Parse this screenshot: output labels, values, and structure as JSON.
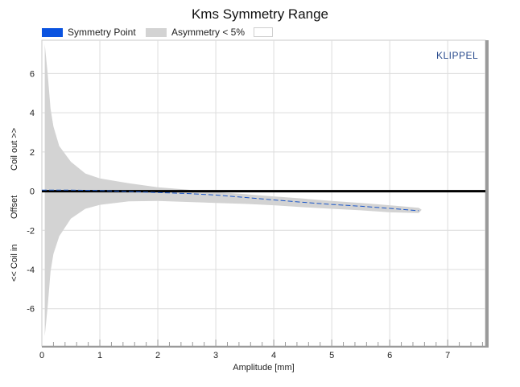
{
  "chart_data": {
    "type": "area",
    "title": "Kms Symmetry Range",
    "xlabel": "Amplitude [mm]",
    "ylabel_parts": [
      "<< Coil in",
      "Offset",
      "Coil out >>"
    ],
    "xlim": [
      0,
      7.65
    ],
    "ylim": [
      -7.9,
      7.7
    ],
    "x_ticks": [
      0,
      1,
      2,
      3,
      4,
      5,
      6,
      7
    ],
    "y_ticks": [
      6,
      4,
      2,
      0,
      -2,
      -4,
      -6
    ],
    "grid": true,
    "legend_position": "top",
    "series": [
      {
        "name": "Symmetry Point",
        "color": "#0a53e0",
        "x": [
          0.0,
          0.5,
          1.0,
          1.5,
          2.0,
          2.5,
          3.0,
          3.5,
          4.0,
          4.5,
          5.0,
          5.5,
          6.0,
          6.5
        ],
        "y": [
          0.05,
          0.05,
          0.03,
          -0.02,
          -0.07,
          -0.12,
          -0.2,
          -0.32,
          -0.45,
          -0.57,
          -0.68,
          -0.77,
          -0.88,
          -1.0
        ]
      },
      {
        "name": "Asymmetry < 5%",
        "color": "#d3d3d3",
        "x": [
          0.05,
          0.1,
          0.15,
          0.2,
          0.3,
          0.5,
          0.75,
          1.0,
          1.5,
          2.0,
          2.5,
          3.0,
          3.5,
          4.0,
          4.5,
          5.0,
          5.5,
          6.0,
          6.5,
          6.55
        ],
        "upper": [
          7.5,
          6.0,
          4.2,
          3.3,
          2.3,
          1.5,
          0.9,
          0.65,
          0.4,
          0.2,
          0.08,
          -0.05,
          -0.15,
          -0.27,
          -0.38,
          -0.5,
          -0.6,
          -0.72,
          -0.85,
          -0.95
        ],
        "lower": [
          -7.4,
          -5.9,
          -4.1,
          -3.2,
          -2.3,
          -1.4,
          -0.9,
          -0.7,
          -0.52,
          -0.5,
          -0.55,
          -0.6,
          -0.65,
          -0.72,
          -0.82,
          -0.9,
          -0.98,
          -1.08,
          -1.12,
          -0.95
        ]
      },
      {
        "name": "",
        "color": "#ffffff"
      }
    ],
    "reference_line_y": 0,
    "watermark": "KLIPPEL"
  }
}
